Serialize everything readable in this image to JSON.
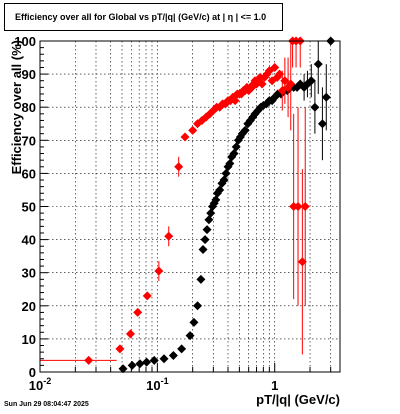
{
  "chart_data": {
    "type": "scatter",
    "title": "Efficiency over all for Global vs pT/|q| (GeV/c) at |  η  | <= 1.0",
    "xlabel": "pT/|q| (GeV/c)",
    "ylabel": "Efficiency over all (%)",
    "x_scale": "log",
    "xlim": [
      0.01,
      3.6
    ],
    "ylim": [
      0,
      100
    ],
    "x_tick_labels": [
      "10^-2",
      "10^-1",
      "1"
    ],
    "y_ticks": [
      0,
      10,
      20,
      30,
      40,
      50,
      60,
      70,
      80,
      90,
      100
    ],
    "grid": true,
    "series": [
      {
        "color": "#000000",
        "marker": "diamond",
        "points": [
          [
            0.051,
            1
          ],
          [
            0.061,
            2
          ],
          [
            0.071,
            2.5
          ],
          [
            0.081,
            3
          ],
          [
            0.094,
            3.5
          ],
          [
            0.114,
            4
          ],
          [
            0.137,
            5
          ],
          [
            0.161,
            7
          ],
          [
            0.19,
            11
          ],
          [
            0.205,
            15
          ],
          [
            0.22,
            20
          ],
          [
            0.235,
            28
          ],
          [
            0.245,
            37
          ],
          [
            0.255,
            40
          ],
          [
            0.265,
            43
          ],
          [
            0.275,
            46
          ],
          [
            0.285,
            48
          ],
          [
            0.295,
            50
          ],
          [
            0.305,
            51
          ],
          [
            0.315,
            52
          ],
          [
            0.325,
            54
          ],
          [
            0.34,
            55
          ],
          [
            0.355,
            57
          ],
          [
            0.37,
            58
          ],
          [
            0.385,
            60
          ],
          [
            0.4,
            62
          ],
          [
            0.415,
            63
          ],
          [
            0.43,
            65
          ],
          [
            0.45,
            66
          ],
          [
            0.47,
            68
          ],
          [
            0.49,
            70
          ],
          [
            0.51,
            71
          ],
          [
            0.53,
            72
          ],
          [
            0.56,
            73
          ],
          [
            0.59,
            75
          ],
          [
            0.62,
            76
          ],
          [
            0.65,
            77
          ],
          [
            0.68,
            78
          ],
          [
            0.72,
            79
          ],
          [
            0.76,
            80
          ],
          [
            0.8,
            80.5
          ],
          [
            0.85,
            81
          ],
          [
            0.9,
            82
          ],
          [
            0.95,
            82
          ],
          [
            1.0,
            83
          ],
          [
            1.06,
            84
          ],
          [
            1.13,
            84
          ],
          [
            1.2,
            85
          ],
          [
            1.28,
            85
          ],
          [
            1.36,
            86
          ],
          [
            1.45,
            86
          ],
          [
            1.55,
            86
          ],
          [
            1.65,
            87
          ],
          [
            1.78,
            86
          ],
          [
            1.9,
            87
          ],
          [
            2.05,
            88
          ],
          [
            2.2,
            80
          ],
          [
            2.35,
            93
          ],
          [
            2.55,
            75
          ],
          [
            2.75,
            83
          ],
          [
            3.0,
            100
          ]
        ]
      },
      {
        "color": "#ff0000",
        "marker": "diamond",
        "points": [
          [
            0.026,
            3.5
          ],
          [
            0.048,
            7
          ],
          [
            0.059,
            11.5
          ],
          [
            0.068,
            18
          ],
          [
            0.082,
            23
          ],
          [
            0.103,
            30.5
          ],
          [
            0.125,
            41
          ],
          [
            0.152,
            62
          ],
          [
            0.172,
            71
          ],
          [
            0.2,
            73
          ],
          [
            0.22,
            75
          ],
          [
            0.24,
            76
          ],
          [
            0.26,
            77
          ],
          [
            0.28,
            78
          ],
          [
            0.3,
            79
          ],
          [
            0.32,
            80
          ],
          [
            0.34,
            80
          ],
          [
            0.36,
            81
          ],
          [
            0.38,
            81
          ],
          [
            0.4,
            82
          ],
          [
            0.42,
            82
          ],
          [
            0.44,
            83
          ],
          [
            0.46,
            82
          ],
          [
            0.48,
            84
          ],
          [
            0.5,
            84
          ],
          [
            0.52,
            84
          ],
          [
            0.54,
            85
          ],
          [
            0.56,
            85
          ],
          [
            0.58,
            86
          ],
          [
            0.6,
            85
          ],
          [
            0.62,
            86
          ],
          [
            0.64,
            86
          ],
          [
            0.66,
            87
          ],
          [
            0.68,
            88
          ],
          [
            0.7,
            87
          ],
          [
            0.72,
            88
          ],
          [
            0.75,
            89
          ],
          [
            0.78,
            87
          ],
          [
            0.82,
            89
          ],
          [
            0.86,
            90
          ],
          [
            0.9,
            91
          ],
          [
            0.95,
            88
          ],
          [
            1.0,
            92
          ],
          [
            1.05,
            89
          ],
          [
            1.1,
            90
          ],
          [
            1.16,
            85
          ],
          [
            1.22,
            88
          ],
          [
            1.3,
            86
          ],
          [
            1.37,
            87
          ],
          [
            1.42,
            100
          ],
          [
            1.45,
            50
          ],
          [
            1.52,
            100
          ],
          [
            1.58,
            50
          ],
          [
            1.65,
            100
          ],
          [
            1.72,
            33.3
          ],
          [
            1.82,
            50
          ]
        ]
      }
    ]
  },
  "timestamp": "Sun Jun 29 08:04:47 2025"
}
